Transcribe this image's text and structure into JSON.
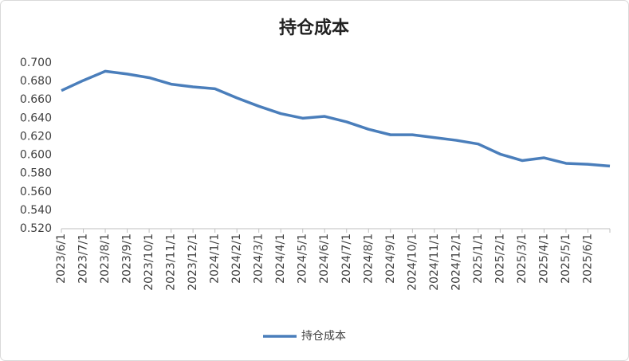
{
  "chart_data": {
    "type": "line",
    "title": "持仓成本",
    "categories": [
      "2023/6/1",
      "2023/7/1",
      "2023/8/1",
      "2023/9/1",
      "2023/10/1",
      "2023/11/1",
      "2023/12/1",
      "2024/1/1",
      "2024/2/1",
      "2024/3/1",
      "2024/4/1",
      "2024/5/1",
      "2024/6/1",
      "2024/7/1",
      "2024/8/1",
      "2024/9/1",
      "2024/10/1",
      "2024/11/1",
      "2024/12/1",
      "2025/1/1",
      "2025/2/1",
      "2025/3/1",
      "2025/4/1",
      "2025/5/1",
      "2025/6/1",
      null
    ],
    "series": [
      {
        "name": "持仓成本",
        "color": "#4a7ebb",
        "values": [
          0.67,
          0.681,
          0.691,
          0.688,
          0.684,
          0.677,
          0.674,
          0.672,
          0.662,
          0.653,
          0.645,
          0.64,
          0.642,
          0.636,
          0.628,
          0.622,
          0.622,
          0.619,
          0.616,
          0.612,
          0.601,
          0.594,
          0.597,
          0.591,
          0.59,
          0.588
        ]
      }
    ],
    "ylim": [
      0.52,
      0.7
    ],
    "yticks": [
      {
        "value": 0.52,
        "label": "0.520"
      },
      {
        "value": 0.54,
        "label": "0.540"
      },
      {
        "value": 0.56,
        "label": "0.560"
      },
      {
        "value": 0.58,
        "label": "0.580"
      },
      {
        "value": 0.6,
        "label": "0.600"
      },
      {
        "value": 0.62,
        "label": "0.620"
      },
      {
        "value": 0.64,
        "label": "0.640"
      },
      {
        "value": 0.66,
        "label": "0.660"
      },
      {
        "value": 0.68,
        "label": "0.680"
      },
      {
        "value": 0.7,
        "label": "0.700"
      }
    ],
    "grid": false,
    "legend": "bottom"
  }
}
